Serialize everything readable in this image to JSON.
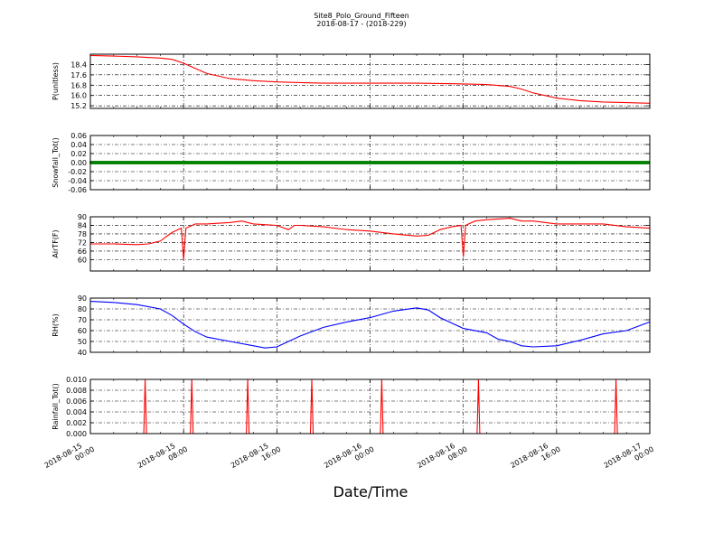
{
  "title_line1": "Site8_Polo_Ground_Fifteen",
  "title_line2": "2018-08-17 - (2018-229)",
  "xlabel": "Date/Time",
  "x_ticks": [
    "2018-08-15\n00:00",
    "2018-08-15\n08:00",
    "2018-08-15\n16:00",
    "2018-08-16\n00:00",
    "2018-08-16\n08:00",
    "2018-08-16\n16:00",
    "2018-08-17\n00:00"
  ],
  "chart_data": [
    {
      "type": "line",
      "ylabel": "P(unitless)",
      "color": "#ff0000",
      "ylim": [
        15.0,
        19.2
      ],
      "yticks": [
        "15.2",
        "16.0",
        "16.8",
        "17.6",
        "18.4"
      ],
      "x_hours": [
        0,
        2,
        4,
        6,
        7,
        8,
        9,
        10,
        12,
        14,
        16,
        18,
        20,
        22,
        24,
        28,
        32,
        34,
        36,
        37,
        38,
        39,
        40,
        42,
        44,
        46,
        48
      ],
      "values": [
        19.1,
        19.05,
        19.0,
        18.9,
        18.8,
        18.5,
        18.1,
        17.7,
        17.3,
        17.15,
        17.05,
        17.0,
        16.95,
        16.95,
        16.95,
        16.95,
        16.9,
        16.85,
        16.7,
        16.5,
        16.2,
        16.0,
        15.8,
        15.6,
        15.5,
        15.45,
        15.4
      ]
    },
    {
      "type": "scatter",
      "ylabel": "Snowfall_Tot()",
      "color": "#008000",
      "ylim": [
        -0.06,
        0.06
      ],
      "yticks": [
        "-0.06",
        "-0.04",
        "-0.02",
        "0.00",
        "0.02",
        "0.04",
        "0.06"
      ],
      "x_range": [
        0,
        48
      ],
      "value": 0.0
    },
    {
      "type": "line",
      "ylabel": "AirTF(F)",
      "color": "#ff0000",
      "ylim": [
        52,
        90
      ],
      "yticks": [
        "60",
        "66",
        "72",
        "78",
        "84",
        "90"
      ],
      "x_hours": [
        0,
        2,
        4,
        5,
        6,
        7,
        7.8,
        8.0,
        8.2,
        9,
        10,
        12,
        13,
        14,
        16,
        17,
        17.5,
        18,
        20,
        22,
        24,
        26,
        28,
        29,
        30,
        31,
        31.8,
        32.0,
        32.2,
        33,
        34,
        36,
        37,
        38,
        40,
        42,
        44,
        46,
        48
      ],
      "values": [
        71,
        71,
        70.5,
        71,
        73,
        79,
        82,
        60,
        82,
        85,
        85,
        86,
        87,
        85,
        84,
        81,
        84,
        84,
        83,
        81,
        80,
        78,
        76.5,
        77,
        81,
        83,
        84,
        62,
        84,
        87,
        88,
        89,
        87,
        87,
        85,
        85,
        85,
        83,
        82
      ]
    },
    {
      "type": "line",
      "ylabel": "RH(%)",
      "color": "#0000ff",
      "ylim": [
        40,
        90
      ],
      "yticks": [
        "40",
        "50",
        "60",
        "70",
        "80",
        "90"
      ],
      "x_hours": [
        0,
        2,
        4,
        6,
        7,
        8,
        9,
        10,
        12,
        14,
        15,
        16,
        18,
        20,
        22,
        24,
        26,
        28,
        29,
        30,
        31,
        32,
        34,
        35,
        36,
        37,
        38,
        40,
        42,
        44,
        46,
        48
      ],
      "values": [
        87,
        86,
        84,
        80,
        74,
        66,
        59,
        54,
        50,
        46,
        44,
        45,
        55,
        63,
        68,
        72,
        78,
        81,
        79,
        72,
        67,
        62,
        58,
        52,
        50,
        46,
        45,
        46,
        51,
        57,
        60,
        68
      ]
    },
    {
      "type": "line",
      "ylabel": "Rainfall_Tot()",
      "color": "#ff0000",
      "ylim": [
        0,
        0.01
      ],
      "yticks": [
        "0.000",
        "0.002",
        "0.004",
        "0.006",
        "0.008",
        "0.010"
      ],
      "x_range": [
        0,
        48
      ],
      "spikes_at_hours": [
        4.7,
        8.7,
        13.5,
        19.0,
        25.0,
        33.3,
        45.1
      ],
      "spike_value": 0.01
    }
  ]
}
